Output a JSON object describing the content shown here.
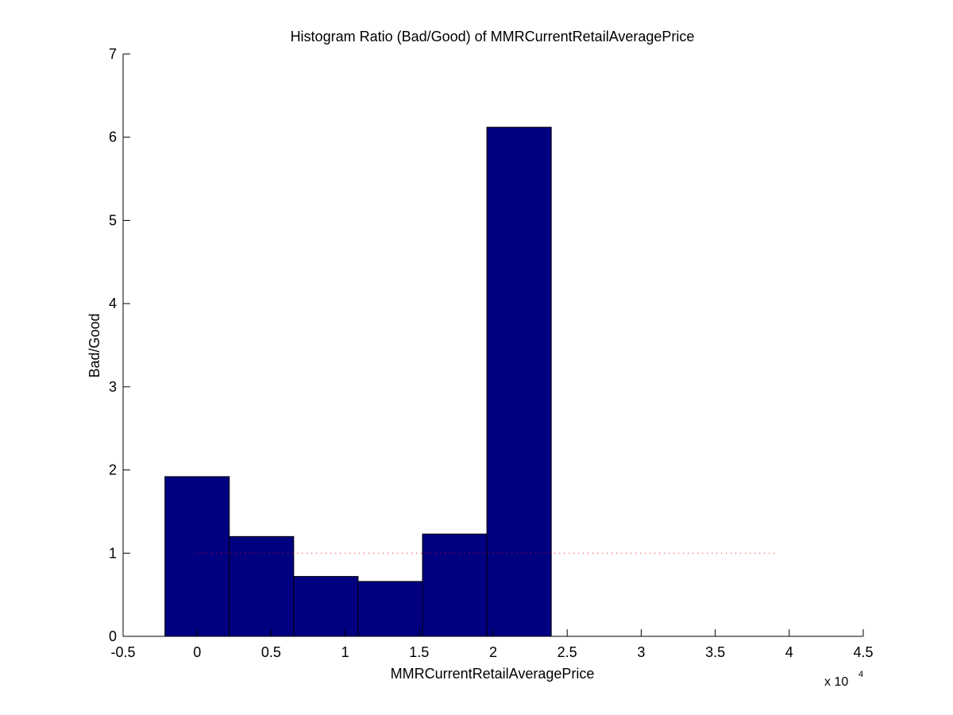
{
  "chart_data": {
    "type": "bar",
    "title": "Histogram Ratio (Bad/Good) of MMRCurrentRetailAveragePrice",
    "xlabel": "MMRCurrentRetailAveragePrice",
    "ylabel": "Bad/Good",
    "x_exponent_label": {
      "base": "x 10",
      "power": "4"
    },
    "xlim": [
      -0.5,
      4.5
    ],
    "ylim": [
      0,
      7
    ],
    "x_ticks": [
      "-0.5",
      "0",
      "0.5",
      "1",
      "1.5",
      "2",
      "2.5",
      "3",
      "3.5",
      "4",
      "4.5"
    ],
    "y_ticks": [
      "0",
      "1",
      "2",
      "3",
      "4",
      "5",
      "6",
      "7"
    ],
    "bar_width": 0.435,
    "bars": [
      {
        "x": 0.0,
        "value": 1.92
      },
      {
        "x": 0.435,
        "value": 1.2
      },
      {
        "x": 0.87,
        "value": 0.72
      },
      {
        "x": 1.305,
        "value": 0.66
      },
      {
        "x": 1.74,
        "value": 1.23
      },
      {
        "x": 2.175,
        "value": 6.12
      }
    ],
    "reference_line": {
      "y": 1,
      "x_start": 0.0,
      "x_end": 3.9,
      "style": "dotted",
      "color": "#ff0000"
    },
    "bar_color": "#000080",
    "bar_edge_color": "#000000",
    "grid": false
  }
}
